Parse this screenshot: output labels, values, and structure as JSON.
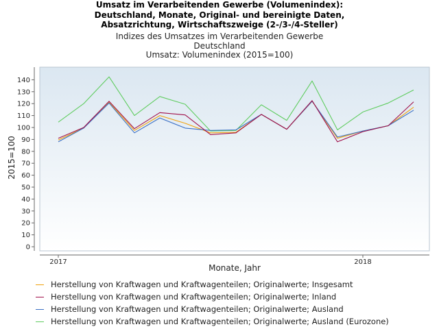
{
  "title_lines": [
    "Umsatz im Verarbeitenden Gewerbe (Volumenindex):",
    "Deutschland, Monate, Original- und bereinigte Daten,",
    "Absatzrichtung, Wirtschaftszweige (2-/3-/4-Steller)"
  ],
  "subtitle_lines": [
    "Indizes des Umsatzes im Verarbeitenden Gewerbe",
    "Deutschland",
    "Umsatz: Volumenindex (2015=100)"
  ],
  "chart_data": {
    "type": "line",
    "title": "Umsatz im Verarbeitenden Gewerbe (Volumenindex): Deutschland, Monate, Original- und bereinigte Daten, Absatzrichtung, Wirtschaftszweige (2-/3-/4-Steller)",
    "subtitle": "Indizes des Umsatzes im Verarbeitenden Gewerbe / Deutschland / Umsatz: Volumenindex (2015=100)",
    "xlabel": "Monate, Jahr",
    "ylabel": "2015=100",
    "x": [
      "2017-01",
      "2017-02",
      "2017-03",
      "2017-04",
      "2017-05",
      "2017-06",
      "2017-07",
      "2017-08",
      "2017-09",
      "2017-10",
      "2017-11",
      "2017-12",
      "2018-01",
      "2018-02",
      "2018-03"
    ],
    "x_tick_labels": [
      {
        "label": "2017",
        "x_index": 0
      },
      {
        "label": "2018",
        "x_index": 12
      }
    ],
    "yticks": [
      0,
      10,
      20,
      30,
      40,
      50,
      60,
      70,
      80,
      90,
      100,
      110,
      120,
      130,
      140
    ],
    "ylim": [
      0,
      147
    ],
    "grid": false,
    "legend_position": "bottom",
    "series": [
      {
        "name": "Herstellung von Kraftwagen und Kraftwagenteilen; Originalwerte; Insgesamt",
        "color": "#f0a10c",
        "values": [
          89.5,
          99.5,
          121.0,
          97.5,
          110.0,
          103.5,
          95.5,
          96.0,
          111.0,
          98.5,
          122.0,
          91.0,
          97.0,
          101.5,
          117.0
        ]
      },
      {
        "name": "Herstellung von Kraftwagen und Kraftwagenteilen; Originalwerte; Inland",
        "color": "#a0104a",
        "values": [
          91.0,
          100.0,
          122.0,
          99.0,
          112.5,
          110.5,
          94.0,
          95.5,
          111.0,
          98.5,
          122.5,
          88.0,
          96.5,
          101.5,
          121.5
        ]
      },
      {
        "name": "Herstellung von Kraftwagen und Kraftwagenteilen; Originalwerte; Ausland",
        "color": "#3a6fc4",
        "values": [
          88.0,
          99.5,
          120.5,
          95.5,
          108.0,
          99.5,
          97.5,
          98.0,
          111.0,
          98.5,
          122.0,
          92.0,
          97.0,
          101.5,
          114.5
        ]
      },
      {
        "name": "Herstellung von Kraftwagen und Kraftwagenteilen; Originalwerte; Ausland (Eurozone)",
        "color": "#5fcc5f",
        "values": [
          104.5,
          120.0,
          142.5,
          110.0,
          126.0,
          119.5,
          97.0,
          97.5,
          119.0,
          106.0,
          139.0,
          98.0,
          113.0,
          120.5,
          131.5
        ]
      }
    ]
  }
}
